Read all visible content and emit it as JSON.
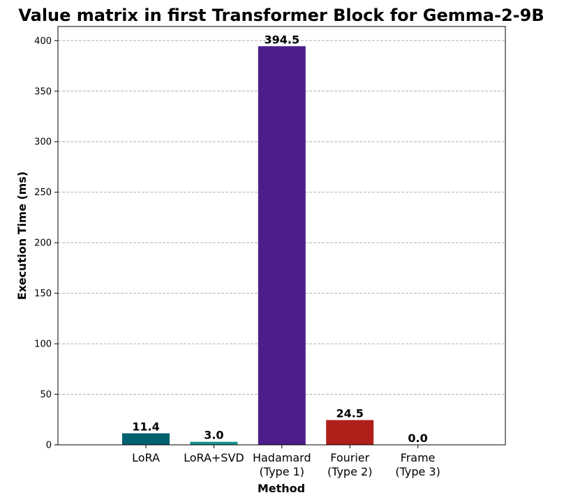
{
  "chart_data": {
    "type": "bar",
    "title": "Value matrix in first Transformer Block for Gemma-2-9B",
    "xlabel": "Method",
    "ylabel": "Execution Time (ms)",
    "categories": [
      [
        "LoRA"
      ],
      [
        "LoRA+SVD"
      ],
      [
        "Hadamard",
        "(Type 1)"
      ],
      [
        "Fourier",
        "(Type 2)"
      ],
      [
        "Frame",
        "(Type 3)"
      ]
    ],
    "values": [
      11.4,
      3.0,
      394.5,
      24.5,
      0.0
    ],
    "data_labels": [
      "11.4",
      "3.0",
      "394.5",
      "24.5",
      "0.0"
    ],
    "colors": [
      "#006070",
      "#1a9090",
      "#4b1e8c",
      "#b0201a",
      "#7a7a7a"
    ],
    "ylim": [
      0,
      414
    ],
    "yticks": [
      0,
      50,
      100,
      150,
      200,
      250,
      300,
      350,
      400
    ],
    "grid": "y-dashed",
    "legend": "none"
  }
}
